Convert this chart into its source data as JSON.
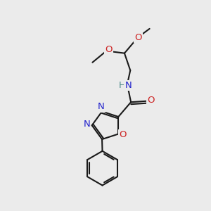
{
  "bg_color": "#ebebeb",
  "bond_color": "#1a1a1a",
  "nitrogen_color": "#2222cc",
  "oxygen_color": "#cc2222",
  "hydrogen_color": "#4a8888",
  "lw": 1.5,
  "fs": 9.5,
  "figsize": [
    3.0,
    3.0
  ],
  "dpi": 100,
  "xlim": [
    0,
    10
  ],
  "ylim": [
    0,
    10
  ]
}
